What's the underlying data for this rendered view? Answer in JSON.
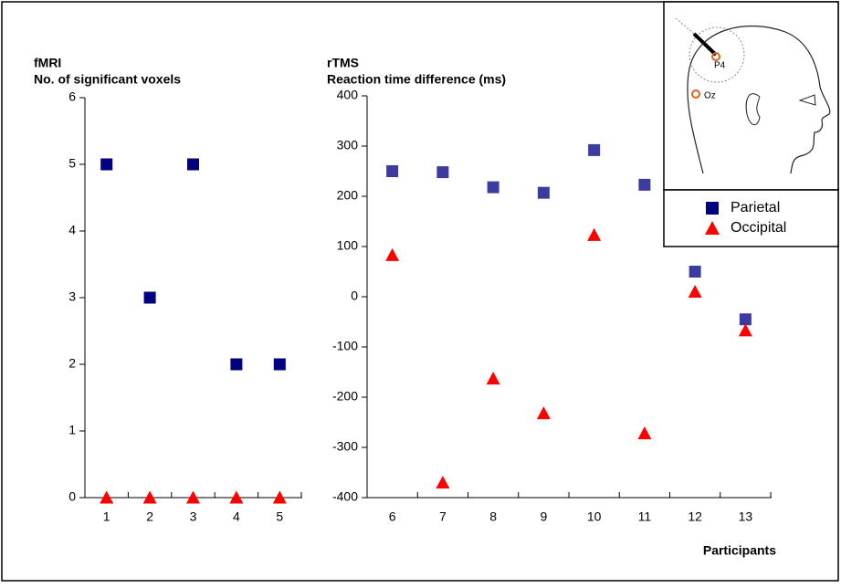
{
  "chart_data": [
    {
      "type": "scatter",
      "title": "fMRI",
      "subtitle": "No. of significant voxels",
      "categories": [
        "1",
        "2",
        "3",
        "4",
        "5"
      ],
      "series": [
        {
          "name": "Parietal",
          "color": "#000080",
          "marker": "square",
          "values": [
            5,
            3,
            5,
            2,
            2
          ]
        },
        {
          "name": "Occipital",
          "color": "#ff0000",
          "marker": "triangle",
          "values": [
            0,
            0,
            0,
            0,
            0
          ]
        }
      ],
      "ylim": [
        0,
        6
      ],
      "yticks": [
        0,
        1,
        2,
        3,
        4,
        5,
        6
      ]
    },
    {
      "type": "scatter",
      "title": "rTMS",
      "subtitle": "Reaction time difference (ms)",
      "x_label": "Participants",
      "categories": [
        "6",
        "7",
        "8",
        "9",
        "10",
        "11",
        "12",
        "13"
      ],
      "series": [
        {
          "name": "Parietal",
          "color": "#3c3ca0",
          "marker": "square",
          "values": [
            250,
            248,
            218,
            207,
            292,
            223,
            50,
            -45
          ]
        },
        {
          "name": "Occipital",
          "color": "#ff0000",
          "marker": "triangle",
          "values": [
            83,
            -370,
            -163,
            -232,
            123,
            -272,
            10,
            -67
          ]
        }
      ],
      "ylim": [
        -400,
        400
      ],
      "yticks": [
        -400,
        -300,
        -200,
        -100,
        0,
        100,
        200,
        300,
        400
      ]
    }
  ],
  "inset_labels": [
    "P4",
    "Oz"
  ]
}
